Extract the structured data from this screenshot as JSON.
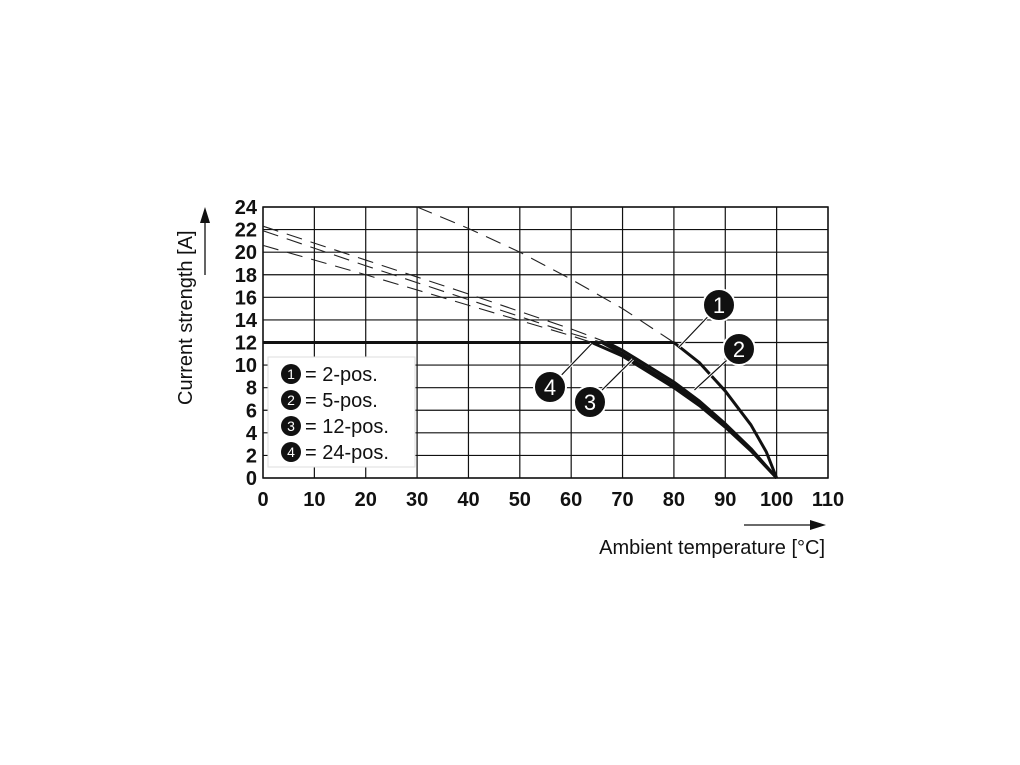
{
  "chart_data": {
    "type": "line",
    "xlabel": "Ambient temperature [°C]",
    "ylabel": "Current strength [A]",
    "xlim": [
      0,
      110
    ],
    "ylim": [
      0,
      24
    ],
    "xticks": [
      "0",
      "10",
      "20",
      "30",
      "40",
      "50",
      "60",
      "70",
      "80",
      "90",
      "100",
      "110"
    ],
    "yticks": [
      "0",
      "2",
      "4",
      "6",
      "8",
      "10",
      "12",
      "14",
      "16",
      "18",
      "20",
      "22",
      "24"
    ],
    "grid": true,
    "legend_position": "bottom-left",
    "legend": [
      {
        "num": "1",
        "label": "= 2-pos."
      },
      {
        "num": "2",
        "label": "= 5-pos."
      },
      {
        "num": "3",
        "label": "= 12-pos."
      },
      {
        "num": "4",
        "label": "= 24-pos."
      }
    ],
    "limit_line": {
      "y": 12,
      "x_range": [
        0,
        80
      ]
    },
    "series": [
      {
        "marker": "1",
        "dashed": [
          [
            30,
            24
          ],
          [
            40,
            22.1
          ],
          [
            50,
            20
          ],
          [
            60,
            17.6
          ],
          [
            70,
            15
          ],
          [
            80,
            12
          ]
        ],
        "solid": [
          [
            80,
            12
          ],
          [
            85,
            10.2
          ],
          [
            90,
            7.7
          ],
          [
            95,
            4.7
          ],
          [
            98,
            2.3
          ],
          [
            100,
            0
          ]
        ]
      },
      {
        "marker": "2",
        "dashed": [
          [
            0,
            22.3
          ],
          [
            20,
            19.3
          ],
          [
            40,
            16.3
          ],
          [
            60,
            13.2
          ],
          [
            67,
            12
          ]
        ],
        "solid": [
          [
            67,
            12
          ],
          [
            70,
            11.3
          ],
          [
            80,
            8.5
          ],
          [
            85,
            6.8
          ],
          [
            90,
            4.8
          ],
          [
            95,
            2.6
          ],
          [
            100,
            0
          ]
        ]
      },
      {
        "marker": "3",
        "dashed": [
          [
            0,
            21.9
          ],
          [
            20,
            18.8
          ],
          [
            40,
            15.8
          ],
          [
            60,
            12.8
          ],
          [
            66,
            12
          ]
        ],
        "solid": [
          [
            66,
            12
          ],
          [
            70,
            11
          ],
          [
            80,
            8.2
          ],
          [
            85,
            6.5
          ],
          [
            90,
            4.6
          ],
          [
            95,
            2.5
          ],
          [
            100,
            0
          ]
        ]
      },
      {
        "marker": "4",
        "dashed": [
          [
            0,
            20.6
          ],
          [
            20,
            18
          ],
          [
            40,
            15.3
          ],
          [
            60,
            12.6
          ],
          [
            64,
            12
          ]
        ],
        "solid": [
          [
            64,
            12
          ],
          [
            70,
            10.8
          ],
          [
            80,
            8
          ],
          [
            85,
            6.4
          ],
          [
            90,
            4.5
          ],
          [
            95,
            2.4
          ],
          [
            100,
            0
          ]
        ]
      }
    ],
    "callouts": [
      {
        "num": "1",
        "at": [
          81,
          11.6
        ]
      },
      {
        "num": "2",
        "at": [
          84,
          7.8
        ]
      },
      {
        "num": "3",
        "at": [
          72,
          10.5
        ]
      },
      {
        "num": "4",
        "at": [
          64,
          11.9
        ]
      }
    ]
  }
}
